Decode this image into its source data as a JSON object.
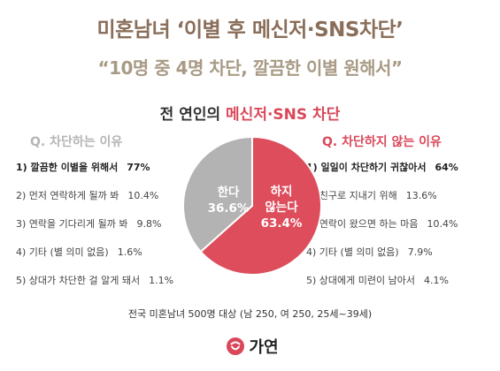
{
  "header": {
    "title": "미혼남녀 ‘이별 후 메신저·SNS차단’",
    "subtitle": "“10명 중 4명 차단, 깔끔한 이별 원해서”"
  },
  "section": {
    "prefix": "전 연인의 ",
    "accent": "메신저·SNS 차단"
  },
  "chart_data": {
    "type": "pie",
    "slices": [
      {
        "label_lines": [
          "한다",
          "36.6%"
        ],
        "value": 36.6,
        "color": "#b3b3b3"
      },
      {
        "label_lines": [
          "하지",
          "않는다",
          "63.4%"
        ],
        "value": 63.4,
        "color": "#dd4d5b"
      }
    ]
  },
  "reasons_block": {
    "heading": "Q. 차단하는 이유",
    "items": [
      {
        "text": "1) 깔끔한 이별을 위해서",
        "pct": "77%"
      },
      {
        "text": "2) 먼저 연락하게 될까 봐",
        "pct": "10.4%"
      },
      {
        "text": "3) 연락을 기다리게 될까 봐",
        "pct": "9.8%"
      },
      {
        "text": "4) 기타 (별 의미 없음)",
        "pct": "1.6%"
      },
      {
        "text": "5) 상대가 차단한 걸 알게 돼서",
        "pct": "1.1%"
      }
    ]
  },
  "reasons_not_block": {
    "heading": "Q. 차단하지 않는 이유",
    "items": [
      {
        "text": "1) 일일이 차단하기 귀찮아서",
        "pct": "64%"
      },
      {
        "text": "2) 친구로 지내기 위해",
        "pct": "13.6%"
      },
      {
        "text": "3) 연락이 왔으면 하는 마음",
        "pct": "10.4%"
      },
      {
        "text": "4) 기타 (별 의미 없음)",
        "pct": "7.9%"
      },
      {
        "text": "5) 상대에게 미련이 남아서",
        "pct": "4.1%"
      }
    ]
  },
  "footer": {
    "note": "전국 미혼남녀 500명 대상 (남 250, 여 250, 25세~39세)",
    "brand": "가연",
    "brand_color": "#d9485a"
  }
}
